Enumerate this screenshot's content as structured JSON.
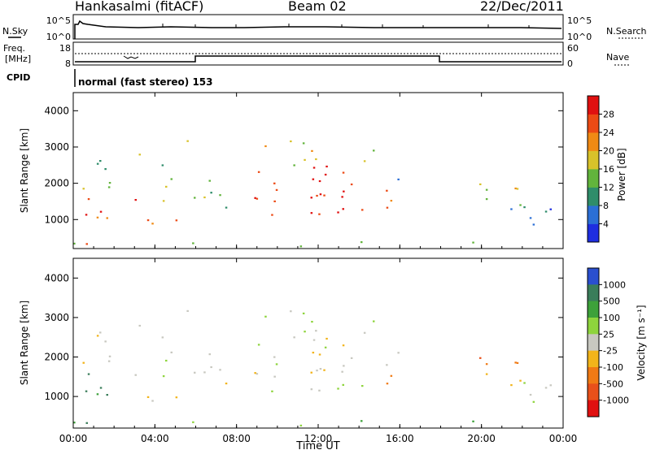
{
  "header": {
    "title": "Hankasalmi (fitACF)",
    "beam": "Beam 02",
    "date": "22/Dec/2011"
  },
  "sky_panel": {
    "left_label": "N.Sky",
    "right_label": "N.Search",
    "ticks_left": [
      "10^5",
      "10^0"
    ],
    "ticks_right": [
      "10^5",
      "10^0"
    ]
  },
  "freq_panel": {
    "left_label_1": "Freq.",
    "left_label_2": "[MHz]",
    "right_label": "Nave",
    "ticks_left": [
      "18",
      "8"
    ],
    "ticks_right": [
      "60",
      "0"
    ]
  },
  "cpid_panel": {
    "label": "CPID",
    "text": "normal (fast stereo) 153"
  },
  "x_axis": {
    "title": "Time UT",
    "ticks": [
      "00:00",
      "04:00",
      "08:00",
      "12:00",
      "16:00",
      "20:00",
      "00:00"
    ],
    "range_hours": [
      0,
      24
    ]
  },
  "colors": {
    "power": [
      "#1e2ee0",
      "#2b6fd6",
      "#2f8d6a",
      "#62b43c",
      "#d8c22a",
      "#f08a14",
      "#ec4a14",
      "#e01010"
    ],
    "velocity": [
      "#2a4fcf",
      "#3a7d5a",
      "#3da13a",
      "#8ed43d",
      "#c8c8c0",
      "#f2b41a",
      "#f07a14",
      "#e8501a",
      "#e01010"
    ]
  },
  "chart_data": [
    {
      "type": "heatmap",
      "name": "power",
      "ylabel": "Slant Range [km]",
      "xlabel": "",
      "ylim": [
        200,
        4500
      ],
      "yticks": [
        1000,
        2000,
        3000,
        4000
      ],
      "colorbar": {
        "label": "Power [dB]",
        "ticks": [
          "4",
          "8",
          "12",
          "16",
          "20",
          "24",
          "28"
        ],
        "range": [
          0,
          32
        ]
      }
    },
    {
      "type": "heatmap",
      "name": "velocity",
      "ylabel": "Slant Range [km]",
      "xlabel": "Time UT",
      "ylim": [
        200,
        4500
      ],
      "yticks": [
        1000,
        2000,
        3000,
        4000
      ],
      "colorbar": {
        "label": "Velocity [m s⁻¹]",
        "ticks": [
          "1000",
          "500",
          "100",
          "25",
          "-25",
          "-100",
          "-500",
          "-1000"
        ]
      }
    }
  ]
}
